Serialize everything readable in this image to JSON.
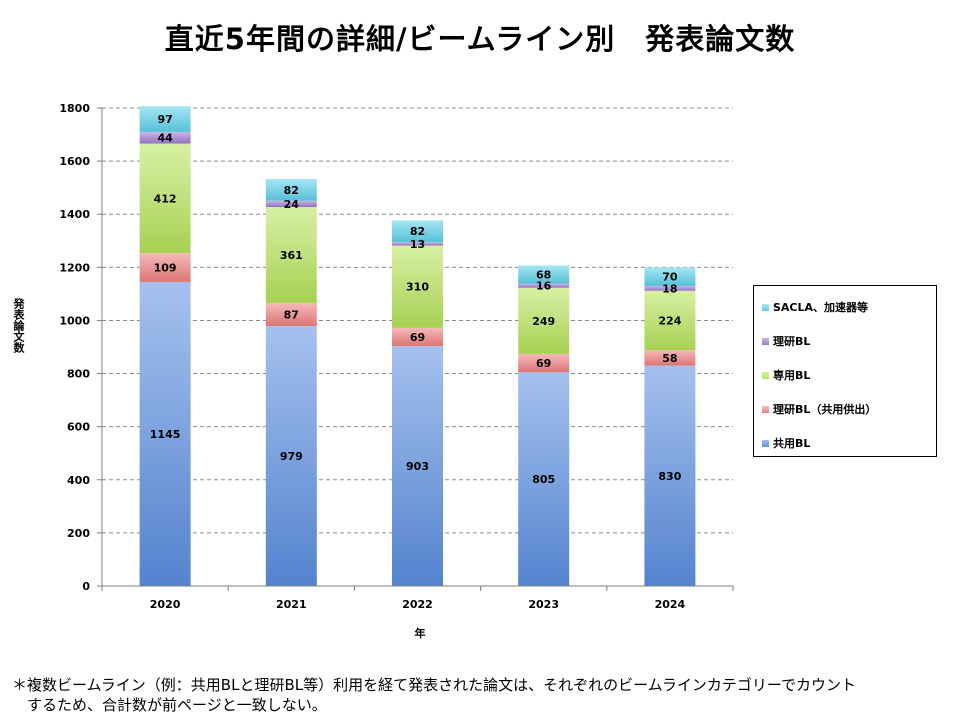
{
  "title": "直近5年間の詳細/ビームライン別　発表論文数",
  "footnote": {
    "line1": "＊複数ビームライン（例：共用BLと理研BL等）利用を経て発表された論文は、それぞれのビームラインカテゴリーでカウント",
    "line2": "　するため、合計数が前ページと一致しない。"
  },
  "chart_data": {
    "type": "bar",
    "stacked": true,
    "categories": [
      "2020",
      "2021",
      "2022",
      "2023",
      "2024"
    ],
    "series": [
      {
        "name": "共用BL",
        "values": [
          1145,
          979,
          903,
          805,
          830
        ],
        "color": "#5b8ee0"
      },
      {
        "name": "理研BL（共用供出）",
        "values": [
          109,
          87,
          69,
          69,
          58
        ],
        "color": "#ef7f7f"
      },
      {
        "name": "専用BL",
        "values": [
          412,
          361,
          310,
          249,
          224
        ],
        "color": "#b6e35a"
      },
      {
        "name": "理研BL",
        "values": [
          44,
          24,
          13,
          16,
          18
        ],
        "color": "#9e7cd0"
      },
      {
        "name": "SACLA、加速器等",
        "values": [
          97,
          82,
          82,
          68,
          70
        ],
        "color": "#5ed1ea"
      }
    ],
    "xlabel": "年",
    "ylabel": "発表論文数",
    "ylim": [
      0,
      1800
    ],
    "yticks": [
      0,
      200,
      400,
      600,
      800,
      1000,
      1200,
      1400,
      1600,
      1800
    ],
    "grid": true,
    "legend_position": "right"
  }
}
